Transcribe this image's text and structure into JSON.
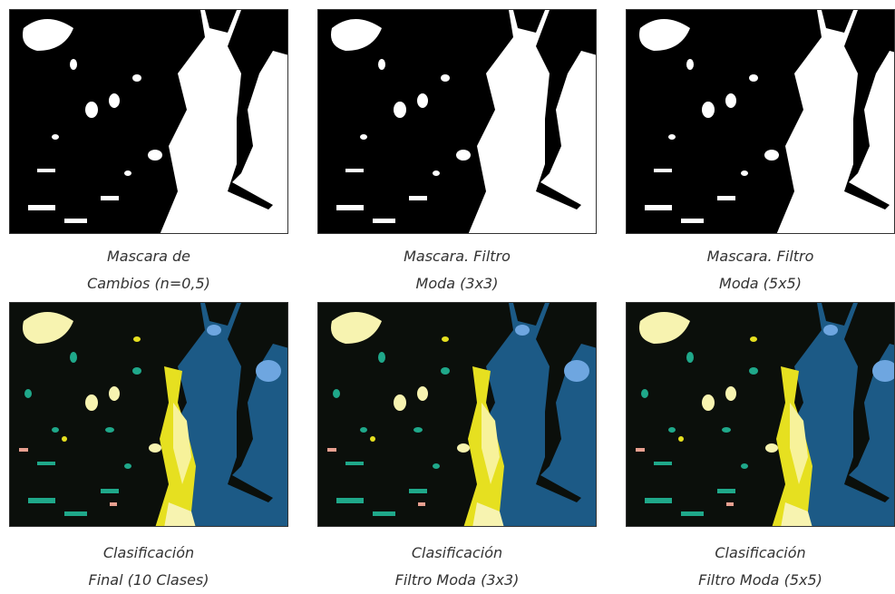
{
  "captions": [
    {
      "line1": "Mascara de",
      "line2": "Cambios (n=0,5)"
    },
    {
      "line1": "Mascara. Filtro",
      "line2": "Moda (3x3)"
    },
    {
      "line1": "Mascara. Filtro",
      "line2": "Moda (5x5)"
    },
    {
      "line1": "Clasificación",
      "line2": "Final (10 Clases)"
    },
    {
      "line1": "Clasificación",
      "line2": "Filtro Moda (3x3)"
    },
    {
      "line1": "Clasificación",
      "line2": "Filtro Moda (5x5)"
    }
  ]
}
